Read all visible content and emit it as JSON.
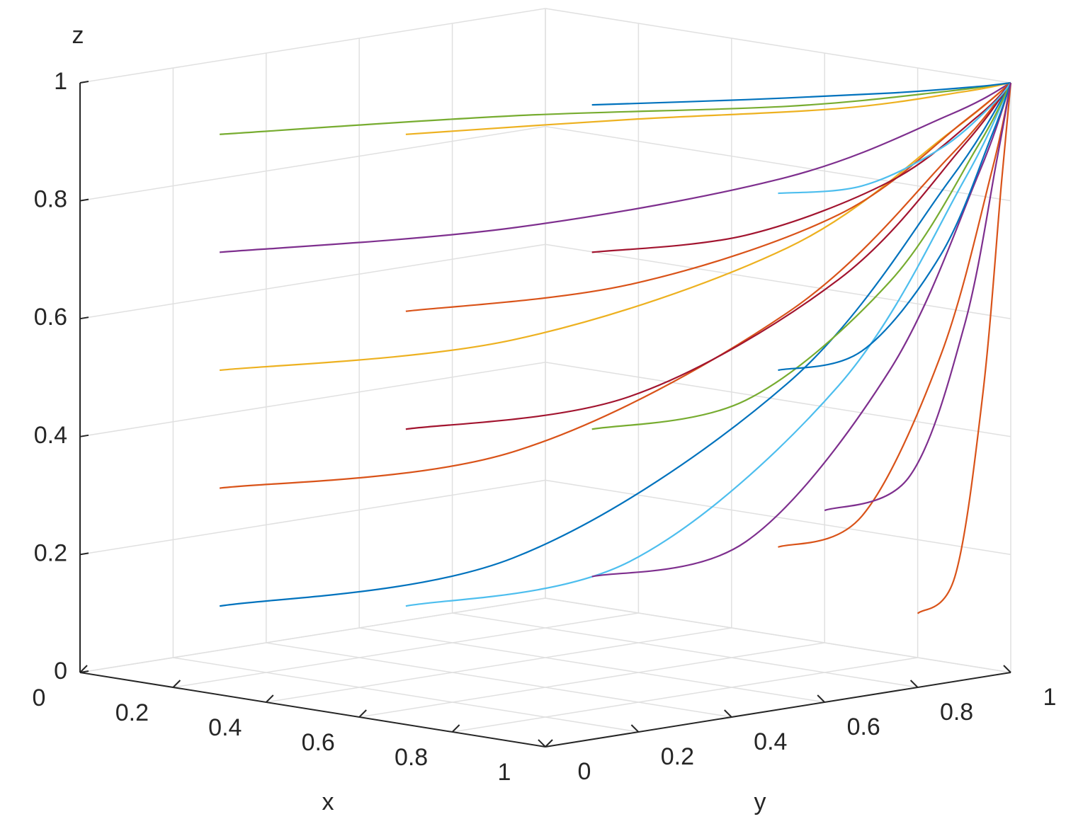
{
  "chart_data": {
    "type": "line3d",
    "xlabel": "x",
    "ylabel": "y",
    "zlabel": "z",
    "xlim": [
      0,
      1
    ],
    "ylim": [
      0,
      1
    ],
    "zlim": [
      0,
      1
    ],
    "xticks": [
      0,
      0.2,
      0.4,
      0.6,
      0.8,
      1
    ],
    "yticks": [
      0,
      0.2,
      0.4,
      0.6,
      0.8,
      1
    ],
    "zticks": [
      0,
      0.2,
      0.4,
      0.6,
      0.8,
      1
    ],
    "grid": true,
    "series": [
      {
        "color": "#77ac30",
        "x": [
          0.1,
          0.33,
          0.68,
          0.91,
          1
        ],
        "y": [
          0.2,
          0.6,
          0.84,
          0.96,
          1
        ],
        "z": [
          0.9,
          0.91,
          0.94,
          0.98,
          1
        ]
      },
      {
        "color": "#7e2f8e",
        "x": [
          0.1,
          0.33,
          0.68,
          0.91,
          1
        ],
        "y": [
          0.2,
          0.6,
          0.84,
          0.96,
          1
        ],
        "z": [
          0.7,
          0.72,
          0.82,
          0.94,
          1
        ]
      },
      {
        "color": "#edb120",
        "x": [
          0.1,
          0.33,
          0.68,
          0.91,
          1
        ],
        "y": [
          0.2,
          0.6,
          0.84,
          0.96,
          1
        ],
        "z": [
          0.5,
          0.53,
          0.7,
          0.91,
          1
        ]
      },
      {
        "color": "#d95319",
        "x": [
          0.1,
          0.33,
          0.68,
          0.91,
          1
        ],
        "y": [
          0.2,
          0.6,
          0.84,
          0.96,
          1
        ],
        "z": [
          0.3,
          0.34,
          0.59,
          0.87,
          1
        ]
      },
      {
        "color": "#0072bd",
        "x": [
          0.1,
          0.33,
          0.68,
          0.91,
          1
        ],
        "y": [
          0.2,
          0.6,
          0.84,
          0.96,
          1
        ],
        "z": [
          0.1,
          0.16,
          0.47,
          0.83,
          1
        ]
      },
      {
        "color": "#edb120",
        "x": [
          0.3,
          0.48,
          0.75,
          0.93,
          1
        ],
        "y": [
          0.4,
          0.7,
          0.88,
          0.97,
          1
        ],
        "z": [
          0.9,
          0.91,
          0.94,
          0.98,
          1
        ]
      },
      {
        "color": "#d95319",
        "x": [
          0.3,
          0.48,
          0.75,
          0.93,
          1
        ],
        "y": [
          0.4,
          0.7,
          0.88,
          0.97,
          1
        ],
        "z": [
          0.6,
          0.63,
          0.76,
          0.93,
          1
        ]
      },
      {
        "color": "#a2142f",
        "x": [
          0.3,
          0.48,
          0.75,
          0.93,
          1
        ],
        "y": [
          0.4,
          0.7,
          0.88,
          0.97,
          1
        ],
        "z": [
          0.4,
          0.44,
          0.65,
          0.89,
          1
        ]
      },
      {
        "color": "#4dbeee",
        "x": [
          0.3,
          0.48,
          0.75,
          0.93,
          1
        ],
        "y": [
          0.4,
          0.7,
          0.88,
          0.97,
          1
        ],
        "z": [
          0.1,
          0.16,
          0.47,
          0.83,
          1
        ]
      },
      {
        "color": "#0072bd",
        "x": [
          0.5,
          0.63,
          0.82,
          0.95,
          1
        ],
        "y": [
          0.6,
          0.8,
          0.92,
          0.98,
          1
        ],
        "z": [
          0.95,
          0.95,
          0.97,
          0.99,
          1
        ]
      },
      {
        "color": "#a2142f",
        "x": [
          0.5,
          0.63,
          0.82,
          0.95,
          1
        ],
        "y": [
          0.6,
          0.8,
          0.92,
          0.98,
          1
        ],
        "z": [
          0.7,
          0.72,
          0.82,
          0.94,
          1
        ]
      },
      {
        "color": "#77ac30",
        "x": [
          0.5,
          0.63,
          0.82,
          0.95,
          1
        ],
        "y": [
          0.6,
          0.8,
          0.92,
          0.98,
          1
        ],
        "z": [
          0.4,
          0.44,
          0.65,
          0.89,
          1
        ]
      },
      {
        "color": "#7e2f8e",
        "x": [
          0.5,
          0.63,
          0.82,
          0.95,
          1
        ],
        "y": [
          0.6,
          0.8,
          0.92,
          0.98,
          1
        ],
        "z": [
          0.15,
          0.2,
          0.5,
          0.84,
          1
        ]
      },
      {
        "color": "#4dbeee",
        "x": [
          0.7,
          0.78,
          0.89,
          0.97,
          1
        ],
        "y": [
          0.8,
          0.9,
          0.96,
          0.99,
          1
        ],
        "z": [
          0.8,
          0.81,
          0.88,
          0.96,
          1
        ]
      },
      {
        "color": "#0072bd",
        "x": [
          0.7,
          0.78,
          0.89,
          0.97,
          1
        ],
        "y": [
          0.8,
          0.9,
          0.96,
          0.99,
          1
        ],
        "z": [
          0.5,
          0.53,
          0.7,
          0.91,
          1
        ]
      },
      {
        "color": "#d95319",
        "x": [
          0.7,
          0.78,
          0.89,
          0.97,
          1
        ],
        "y": [
          0.8,
          0.9,
          0.96,
          0.99,
          1
        ],
        "z": [
          0.2,
          0.25,
          0.53,
          0.85,
          1
        ]
      },
      {
        "color": "#d95319",
        "x": [
          0.9,
          0.93,
          0.96,
          0.99,
          1
        ],
        "y": [
          0.9,
          0.95,
          0.98,
          0.99,
          1
        ],
        "z": [
          0.1,
          0.16,
          0.47,
          0.83,
          1
        ]
      },
      {
        "color": "#7e2f8e",
        "x": [
          0.9,
          0.93,
          0.96,
          0.99,
          1
        ],
        "y": [
          0.7,
          0.85,
          0.94,
          0.98,
          1
        ],
        "z": [
          0.3,
          0.34,
          0.59,
          0.87,
          1
        ]
      }
    ]
  }
}
